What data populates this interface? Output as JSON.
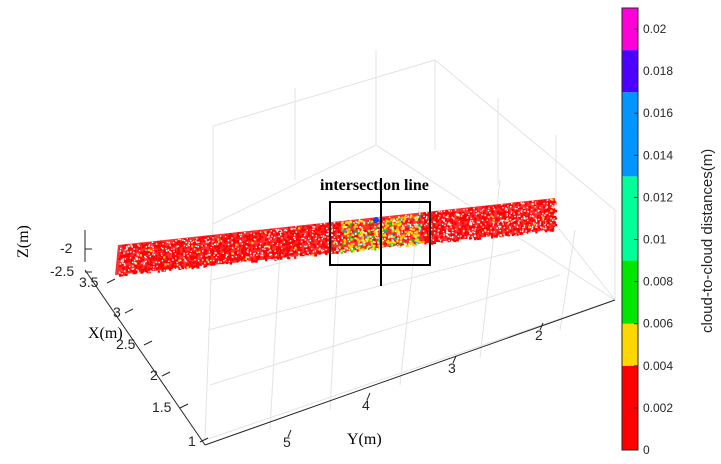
{
  "chart_data": {
    "type": "scatter",
    "title": "",
    "xlabel": "X(m)",
    "ylabel": "Y(m)",
    "zlabel": "Z(m)",
    "x_ticks": [
      "1",
      "1.5",
      "2",
      "2.5",
      "3",
      "3.5"
    ],
    "y_ticks": [
      "2",
      "3",
      "4",
      "5"
    ],
    "z_ticks": [
      "-2",
      "-2.5"
    ],
    "annotation": "intersection line",
    "colorbar": {
      "label": "cloud-to-cloud distances(m)",
      "ticks": [
        "0",
        "0.002",
        "0.004",
        "0.006",
        "0.008",
        "0.01",
        "0.012",
        "0.014",
        "0.016",
        "0.018",
        "0.02"
      ],
      "bins": [
        {
          "from": 0,
          "to": 0.004,
          "color": "#ff0000"
        },
        {
          "from": 0.004,
          "to": 0.006,
          "color": "#ffd700"
        },
        {
          "from": 0.006,
          "to": 0.009,
          "color": "#00e600"
        },
        {
          "from": 0.009,
          "to": 0.013,
          "color": "#00ff99"
        },
        {
          "from": 0.013,
          "to": 0.017,
          "color": "#0095ff"
        },
        {
          "from": 0.017,
          "to": 0.019,
          "color": "#4d00ff"
        },
        {
          "from": 0.019,
          "to": 0.021,
          "color": "#ff00d8"
        }
      ]
    },
    "series": [
      {
        "values": "point cloud colored by cloud-to-cloud distance",
        "dominant_color": "#ff0000",
        "detail_colors": [
          "#ffd700",
          "#00e600",
          "#0095ff"
        ]
      }
    ],
    "grid": true,
    "legend": "none"
  }
}
